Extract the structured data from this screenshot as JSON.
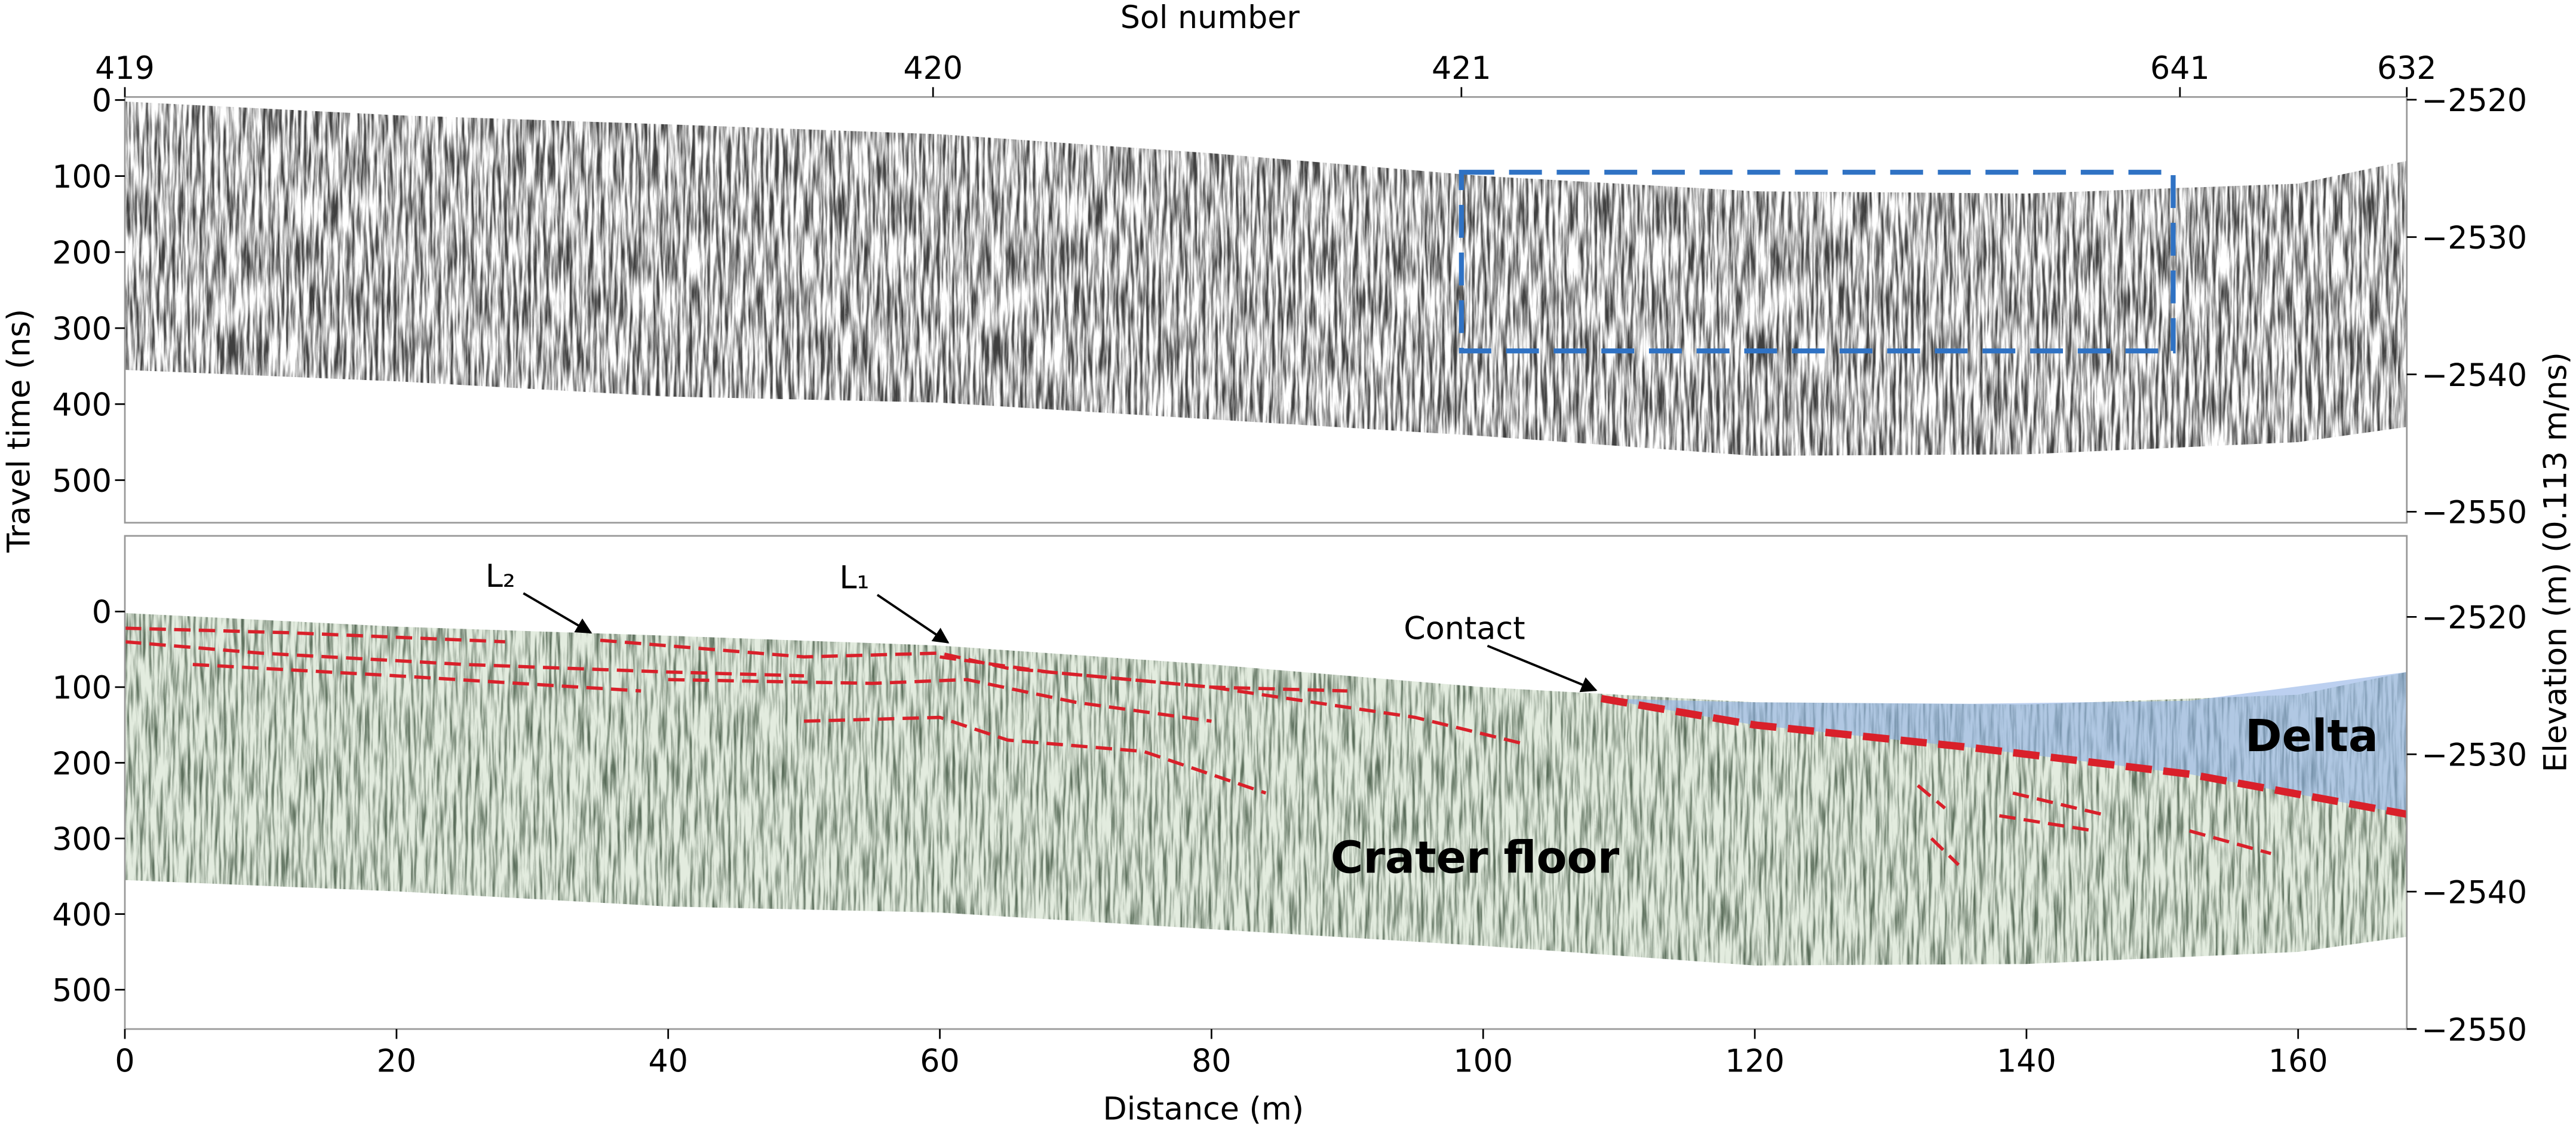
{
  "chart_data": [
    {
      "type": "radargram",
      "x2label": "Sol number",
      "ylabel": "Travel time (ns)",
      "y2label": "Elevation (m) (0.113 m/ns)",
      "xlim": [
        0,
        168
      ],
      "x2ticks": [
        {
          "value": 0,
          "label": "419"
        },
        {
          "value": 59.5,
          "label": "420"
        },
        {
          "value": 98.4,
          "label": "421"
        },
        {
          "value": 151.3,
          "label": "641"
        },
        {
          "value": 168,
          "label": "632"
        }
      ],
      "ylim": [
        556,
        -4
      ],
      "yticks": [
        0,
        100,
        200,
        300,
        400,
        500
      ],
      "y2lim": [
        -2550.8,
        -2519.8
      ],
      "y2ticks": [
        {
          "value": -2520,
          "label": "−2520"
        },
        {
          "value": -2530,
          "label": "−2530"
        },
        {
          "value": -2540,
          "label": "−2540"
        },
        {
          "value": -2550,
          "label": "−2550"
        }
      ],
      "profile": {
        "x": [
          0,
          20,
          40,
          60,
          80,
          100,
          120,
          140,
          160,
          168
        ],
        "top": [
          2,
          20,
          32,
          45,
          70,
          100,
          120,
          123,
          110,
          80
        ],
        "bottom": [
          355,
          370,
          390,
          398,
          420,
          442,
          468,
          466,
          450,
          430
        ]
      },
      "highlight_box": {
        "x": [
          98.4,
          150.8
        ],
        "y": [
          95,
          330
        ],
        "color": "#2f72c4"
      }
    },
    {
      "type": "radargram",
      "xlabel": "Distance (m)",
      "xlim": [
        0,
        168
      ],
      "xticks": [
        0,
        20,
        40,
        60,
        80,
        100,
        120,
        140,
        160
      ],
      "ylim": [
        552,
        -100
      ],
      "yticks": [
        0,
        100,
        200,
        300,
        400,
        500
      ],
      "y2lim": [
        -2550,
        -2514.1
      ],
      "y2ticks": [
        {
          "value": -2520,
          "label": "−2520"
        },
        {
          "value": -2530,
          "label": "−2530"
        },
        {
          "value": -2540,
          "label": "−2540"
        },
        {
          "value": -2550,
          "label": "−2550"
        }
      ],
      "profile": {
        "x": [
          0,
          20,
          40,
          60,
          80,
          100,
          120,
          140,
          160,
          168
        ],
        "top": [
          2,
          20,
          32,
          45,
          70,
          100,
          120,
          123,
          110,
          80
        ],
        "bottom": [
          355,
          370,
          390,
          398,
          420,
          442,
          468,
          466,
          450,
          430
        ]
      },
      "delta": {
        "x": [
          108.7,
          120,
          136,
          152,
          168
        ],
        "top": [
          115,
          120,
          122,
          118,
          80
        ],
        "base": [
          115,
          150,
          180,
          215,
          268
        ],
        "color": "#8fb0e6",
        "contact_color": "#d9202a"
      },
      "horizons": {
        "color": "#d9202a",
        "lines": [
          {
            "x": [
              0,
              12,
              28
            ],
            "y": [
              22,
              28,
              40
            ]
          },
          {
            "x": [
              0,
              10,
              25,
              40,
              50
            ],
            "y": [
              40,
              55,
              70,
              80,
              85
            ]
          },
          {
            "x": [
              5,
              20,
              38
            ],
            "y": [
              70,
              85,
              105
            ]
          },
          {
            "x": [
              35,
              50,
              60,
              65,
              80,
              95,
              103
            ],
            "y": [
              38,
              60,
              55,
              75,
              100,
              140,
              175
            ]
          },
          {
            "x": [
              40,
              55,
              62,
              70,
              80
            ],
            "y": [
              90,
              95,
              90,
              120,
              145
            ]
          },
          {
            "x": [
              50,
              60,
              65,
              75,
              84
            ],
            "y": [
              145,
              140,
              170,
              185,
              240
            ]
          },
          {
            "x": [
              60,
              68,
              80,
              90
            ],
            "y": [
              60,
              80,
              100,
              105
            ]
          },
          {
            "x": [
              132,
              134
            ],
            "y": [
              230,
              260
            ]
          },
          {
            "x": [
              133,
              135
            ],
            "y": [
              300,
              335
            ]
          },
          {
            "x": [
              139,
              146
            ],
            "y": [
              240,
              270
            ]
          },
          {
            "x": [
              138,
              145
            ],
            "y": [
              270,
              290
            ]
          },
          {
            "x": [
              152,
              158
            ],
            "y": [
              290,
              320
            ]
          }
        ]
      },
      "annotations": [
        {
          "text": "L₂",
          "x": 34.3,
          "y": 28
        },
        {
          "text": "L₁",
          "x": 60.6,
          "y": 41
        },
        {
          "text": "Contact",
          "x": 108.3,
          "y": 104
        }
      ],
      "labels": [
        {
          "text": "Delta",
          "x": 161,
          "y": 165
        },
        {
          "text": "Crater floor",
          "x": 99.4,
          "y": 326
        }
      ]
    }
  ]
}
